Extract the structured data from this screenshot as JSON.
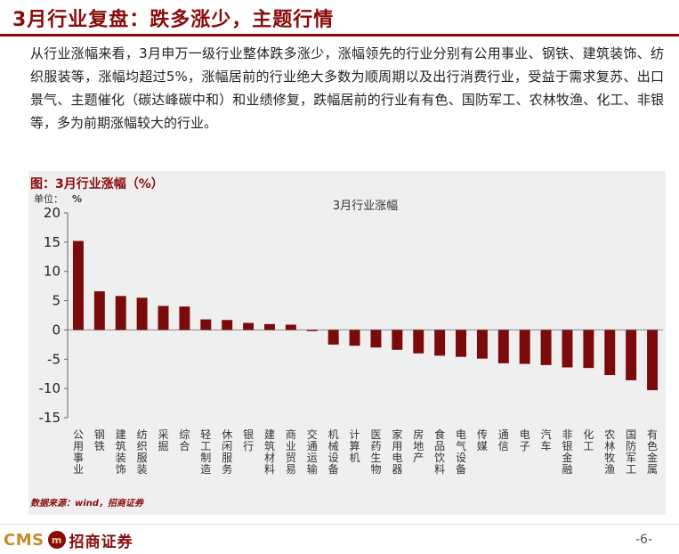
{
  "header": {
    "title": "3月行业复盘：跌多涨少，主题行情"
  },
  "body": {
    "paragraph": "从行业涨幅来看，3月申万一级行业整体跌多涨少，涨幅领先的行业分别有公用事业、钢铁、建筑装饰、纺织服装等，涨幅均超过5%，涨幅居前的行业绝大多数为顺周期以及出行消费行业，受益于需求复苏、出口景气、主题催化（碳达峰碳中和）和业绩修复，跌幅居前的行业有有色、国防军工、农林牧渔、化工、非银等，多为前期涨幅较大的行业。"
  },
  "figure": {
    "caption": "图：3月行业涨幅（%）",
    "unit_label": "单位：",
    "unit_value": "%",
    "source": "数据来源：wind，招商证券"
  },
  "chart_data": {
    "type": "bar",
    "title": "3月行业涨幅",
    "ylim": [
      -15,
      20
    ],
    "yticks": [
      20,
      15,
      10,
      5,
      0,
      -5,
      -10,
      -15
    ],
    "grid": false,
    "legend": "none",
    "bar_color": "#7b0a0a",
    "categories": [
      "公用事业",
      "钢铁",
      "建筑装饰",
      "纺织服装",
      "采掘",
      "综合",
      "轻工制造",
      "休闲服务",
      "银行",
      "建筑材料",
      "商业贸易",
      "交通运输",
      "机械设备",
      "计算机",
      "医药生物",
      "家用电器",
      "房地产",
      "食品饮料",
      "电气设备",
      "传媒",
      "通信",
      "电子",
      "汽车",
      "非银金融",
      "化工",
      "农林牧渔",
      "国防军工",
      "有色金属"
    ],
    "values": [
      15.2,
      6.6,
      5.8,
      5.5,
      4.1,
      4.0,
      1.8,
      1.7,
      1.2,
      1.0,
      0.9,
      -0.2,
      -2.5,
      -2.7,
      -3.0,
      -3.4,
      -4.0,
      -4.4,
      -4.6,
      -4.9,
      -5.7,
      -5.8,
      -6.0,
      -6.4,
      -6.5,
      -7.7,
      -8.6,
      -10.3
    ]
  },
  "footer": {
    "logo_text": "CMS",
    "logo_mark": "m",
    "logo_cn": "招商证券",
    "page_number": "-6-"
  }
}
